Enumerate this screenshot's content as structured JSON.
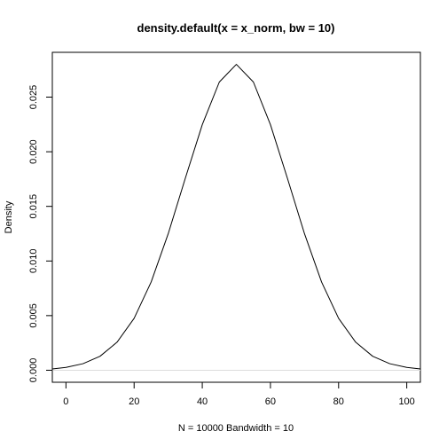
{
  "chart_data": {
    "type": "line",
    "title": "density.default(x = x_norm, bw = 10)",
    "xlabel": "N = 10000   Bandwidth = 10",
    "ylabel": "Density",
    "xlim": [
      -4,
      104
    ],
    "ylim": [
      -0.0011,
      0.0291
    ],
    "x_ticks": [
      0,
      20,
      40,
      60,
      80,
      100
    ],
    "y_ticks": [
      0.0,
      0.005,
      0.01,
      0.015,
      0.02,
      0.025
    ],
    "x_tick_labels": [
      "0",
      "20",
      "40",
      "60",
      "80",
      "100"
    ],
    "y_tick_labels": [
      "0.000",
      "0.005",
      "0.010",
      "0.015",
      "0.020",
      "0.025"
    ],
    "grid": false,
    "baseline": {
      "y": 0,
      "color": "#dddddd"
    },
    "series": [
      {
        "color": "#000000",
        "points": [
          [
            -4,
            0.00012
          ],
          [
            0,
            0.00026
          ],
          [
            5,
            0.0006
          ],
          [
            10,
            0.00128
          ],
          [
            15,
            0.00257
          ],
          [
            20,
            0.00475
          ],
          [
            25,
            0.00808
          ],
          [
            30,
            0.01249
          ],
          [
            35,
            0.01755
          ],
          [
            40,
            0.02248
          ],
          [
            45,
            0.02638
          ],
          [
            50,
            0.028
          ],
          [
            55,
            0.02638
          ],
          [
            60,
            0.02248
          ],
          [
            65,
            0.01755
          ],
          [
            70,
            0.01249
          ],
          [
            75,
            0.00808
          ],
          [
            80,
            0.00475
          ],
          [
            85,
            0.00257
          ],
          [
            90,
            0.00128
          ],
          [
            95,
            0.0006
          ],
          [
            100,
            0.00026
          ],
          [
            104,
            0.00012
          ]
        ]
      }
    ]
  }
}
